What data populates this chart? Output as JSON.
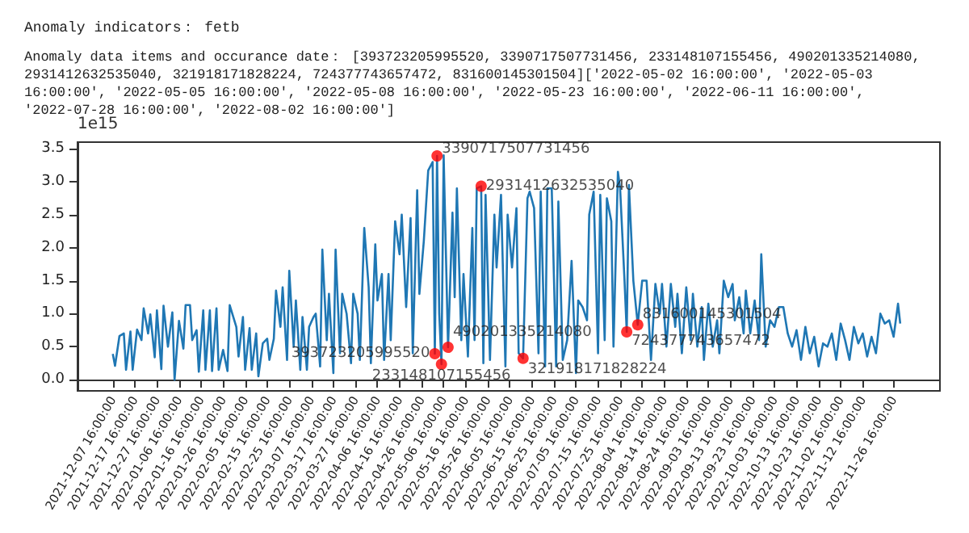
{
  "chart_data": {
    "type": "line",
    "title": "Anomaly indicators： fetb",
    "subtitle": "Anomaly data items and occurance date： [393723205995520, 3390717507731456, 233148107155456, 490201335214080, 2931412632535040, 321918171828224, 724377743657472, 831600145301504]['2022-05-02 16:00:00', '2022-05-03 16:00:00', '2022-05-05 16:00:00', '2022-05-08 16:00:00', '2022-05-23 16:00:00', '2022-06-11 16:00:00', '2022-07-28 16:00:00', '2022-08-02 16:00:00']",
    "annotations": [
      "1e15",
      {
        "text": "393723205995520",
        "x": "2022-05-02T16:00",
        "y": 0.39372320599552
      },
      {
        "text": "3390717507731456",
        "x": "2022-05-03T16:00",
        "y": 3.390717507731456
      },
      {
        "text": "233148107155456",
        "x": "2022-05-05T16:00",
        "y": 0.233148107155456
      },
      {
        "text": "490201335214080",
        "x": "2022-05-08T16:00",
        "y": 0.49020133521408
      },
      {
        "text": "2931412632535040",
        "x": "2022-05-23T16:00",
        "y": 2.93141263253504
      },
      {
        "text": "321918171828224",
        "x": "2022-06-11T16:00",
        "y": 0.321918171828224
      },
      {
        "text": "724377743657472",
        "x": "2022-07-28T16:00",
        "y": 0.724377743657472
      },
      {
        "text": "831600145301504",
        "x": "2022-08-02T16:00",
        "y": 0.831600145301504
      }
    ],
    "xlim": [
      "2021-11-21T16:00",
      "2022-12-17T16:00"
    ],
    "xticks": [
      {
        "value": "2021-12-07T16:00",
        "label": "2021-12-07 16:00:00"
      },
      {
        "value": "2021-12-17T16:00",
        "label": "2021-12-17 16:00:00"
      },
      {
        "value": "2021-12-27T16:00",
        "label": "2021-12-27 16:00:00"
      },
      {
        "value": "2022-01-06T16:00",
        "label": "2022-01-06 16:00:00"
      },
      {
        "value": "2022-01-16T16:00",
        "label": "2022-01-16 16:00:00"
      },
      {
        "value": "2022-01-26T16:00",
        "label": "2022-01-26 16:00:00"
      },
      {
        "value": "2022-02-05T16:00",
        "label": "2022-02-05 16:00:00"
      },
      {
        "value": "2022-02-15T16:00",
        "label": "2022-02-15 16:00:00"
      },
      {
        "value": "2022-02-25T16:00",
        "label": "2022-02-25 16:00:00"
      },
      {
        "value": "2022-03-07T16:00",
        "label": "2022-03-07 16:00:00"
      },
      {
        "value": "2022-03-17T16:00",
        "label": "2022-03-17 16:00:00"
      },
      {
        "value": "2022-03-27T16:00",
        "label": "2022-03-27 16:00:00"
      },
      {
        "value": "2022-04-06T16:00",
        "label": "2022-04-06 16:00:00"
      },
      {
        "value": "2022-04-16T16:00",
        "label": "2022-04-16 16:00:00"
      },
      {
        "value": "2022-04-26T16:00",
        "label": "2022-04-26 16:00:00"
      },
      {
        "value": "2022-05-06T16:00",
        "label": "2022-05-06 16:00:00"
      },
      {
        "value": "2022-05-16T16:00",
        "label": "2022-05-16 16:00:00"
      },
      {
        "value": "2022-05-26T16:00",
        "label": "2022-05-26 16:00:00"
      },
      {
        "value": "2022-06-05T16:00",
        "label": "2022-06-05 16:00:00"
      },
      {
        "value": "2022-06-15T16:00",
        "label": "2022-06-15 16:00:00"
      },
      {
        "value": "2022-06-25T16:00",
        "label": "2022-06-25 16:00:00"
      },
      {
        "value": "2022-07-05T16:00",
        "label": "2022-07-05 16:00:00"
      },
      {
        "value": "2022-07-15T16:00",
        "label": "2022-07-15 16:00:00"
      },
      {
        "value": "2022-07-25T16:00",
        "label": "2022-07-25 16:00:00"
      },
      {
        "value": "2022-08-04T16:00",
        "label": "2022-08-04 16:00:00"
      },
      {
        "value": "2022-08-14T16:00",
        "label": "2022-08-14 16:00:00"
      },
      {
        "value": "2022-08-24T16:00",
        "label": "2022-08-24 16:00:00"
      },
      {
        "value": "2022-09-03T16:00",
        "label": "2022-09-03 16:00:00"
      },
      {
        "value": "2022-09-13T16:00",
        "label": "2022-09-13 16:00:00"
      },
      {
        "value": "2022-09-23T16:00",
        "label": "2022-09-23 16:00:00"
      },
      {
        "value": "2022-10-03T16:00",
        "label": "2022-10-03 16:00:00"
      },
      {
        "value": "2022-10-13T16:00",
        "label": "2022-10-13 16:00:00"
      },
      {
        "value": "2022-10-23T16:00",
        "label": "2022-10-23 16:00:00"
      },
      {
        "value": "2022-11-02T16:00",
        "label": "2022-11-02 16:00:00"
      },
      {
        "value": "2022-11-12T16:00",
        "label": "2022-11-12 16:00:00"
      },
      {
        "value": "2022-11-26T16:00",
        "label": "2022-11-26 16:00:00"
      }
    ],
    "ylim": [
      -0.17,
      3.6
    ],
    "yticks": [
      {
        "value": 0,
        "label": "0.0"
      },
      0.5,
      {
        "value": 1,
        "label": "1.0"
      },
      1.5,
      {
        "value": 2,
        "label": "2.0"
      },
      2.5,
      {
        "value": 3,
        "label": "3.0"
      },
      3.5
    ],
    "series": [
      {
        "type": "line",
        "color": "#1f77b4",
        "marker": "none",
        "x": [
          "2021-12-07T16:00",
          "2021-12-08T16:00",
          "2021-12-10T16:00",
          "2021-12-12T16:00",
          "2021-12-13T16:00",
          "2021-12-15T16:00",
          "2021-12-16T16:00",
          "2021-12-18T16:00",
          "2021-12-20T16:00",
          "2021-12-21T16:00",
          "2021-12-23T16:00",
          "2021-12-24T16:00",
          "2021-12-26T16:00",
          "2021-12-27T16:00",
          "2021-12-29T16:00",
          "2021-12-30T16:00",
          "2022-01-01T16:00",
          "2022-01-03T16:00",
          "2022-01-04T16:00",
          "2022-01-06T16:00",
          "2022-01-08T16:00",
          "2022-01-09T16:00",
          "2022-01-11T16:00",
          "2022-01-12T16:00",
          "2022-01-14T16:00",
          "2022-01-15T16:00",
          "2022-01-17T16:00",
          "2022-01-18T16:00",
          "2022-01-20T16:00",
          "2022-01-21T16:00",
          "2022-01-23T16:00",
          "2022-01-24T16:00",
          "2022-01-26T16:00",
          "2022-01-28T16:00",
          "2022-01-29T16:00",
          "2022-02-01T16:00",
          "2022-02-02T16:00",
          "2022-02-04T16:00",
          "2022-02-05T16:00",
          "2022-02-07T16:00",
          "2022-02-08T16:00",
          "2022-02-10T16:00",
          "2022-02-11T16:00",
          "2022-02-13T16:00",
          "2022-02-15T16:00",
          "2022-02-16T16:00",
          "2022-02-18T16:00",
          "2022-02-19T16:00",
          "2022-02-21T16:00",
          "2022-02-22T16:00",
          "2022-02-24T16:00",
          "2022-02-25T16:00",
          "2022-02-27T16:00",
          "2022-02-28T16:00",
          "2022-03-02T16:00",
          "2022-03-03T16:00",
          "2022-03-05T16:00",
          "2022-03-06T16:00",
          "2022-03-08T16:00",
          "2022-03-09T16:00",
          "2022-03-11T16:00",
          "2022-03-12T16:00",
          "2022-03-14T16:00",
          "2022-03-15T16:00",
          "2022-03-17T16:00",
          "2022-03-18T16:00",
          "2022-03-20T16:00",
          "2022-03-21T16:00",
          "2022-03-23T16:00",
          "2022-03-25T16:00",
          "2022-03-26T16:00",
          "2022-03-28T16:00",
          "2022-03-29T16:00",
          "2022-03-31T16:00",
          "2022-04-02T16:00",
          "2022-04-03T16:00",
          "2022-04-05T16:00",
          "2022-04-06T16:00",
          "2022-04-08T16:00",
          "2022-04-09T16:00",
          "2022-04-11T16:00",
          "2022-04-12T16:00",
          "2022-04-14T16:00",
          "2022-04-16T16:00",
          "2022-04-17T16:00",
          "2022-04-19T16:00",
          "2022-04-21T16:00",
          "2022-04-22T16:00",
          "2022-04-24T16:00",
          "2022-04-25T16:00",
          "2022-04-27T16:00",
          "2022-04-29T16:00",
          "2022-05-01T16:00",
          "2022-05-02T16:00",
          "2022-05-03T16:00",
          "2022-05-04T16:00",
          "2022-05-05T16:00",
          "2022-05-06T16:00",
          "2022-05-08T16:00",
          "2022-05-10T16:00",
          "2022-05-11T16:00",
          "2022-05-12T16:00",
          "2022-05-14T16:00",
          "2022-05-15T16:00",
          "2022-05-17T16:00",
          "2022-05-19T16:00",
          "2022-05-20T16:00",
          "2022-05-21T16:00",
          "2022-05-23T16:00",
          "2022-05-24T16:00",
          "2022-05-25T16:00",
          "2022-05-27T16:00",
          "2022-05-29T16:00",
          "2022-05-30T16:00",
          "2022-06-01T16:00",
          "2022-06-03T16:00",
          "2022-06-04T16:00",
          "2022-06-06T16:00",
          "2022-06-08T16:00",
          "2022-06-09T16:00",
          "2022-06-11T16:00",
          "2022-06-13T16:00",
          "2022-06-14T16:00",
          "2022-06-16T16:00",
          "2022-06-18T16:00",
          "2022-06-19T16:00",
          "2022-06-21T16:00",
          "2022-06-22T16:00",
          "2022-06-24T16:00",
          "2022-06-26T16:00",
          "2022-06-27T16:00",
          "2022-06-29T16:00",
          "2022-07-01T16:00",
          "2022-07-03T16:00",
          "2022-07-05T16:00",
          "2022-07-06T16:00",
          "2022-07-08T16:00",
          "2022-07-10T16:00",
          "2022-07-11T16:00",
          "2022-07-13T16:00",
          "2022-07-15T16:00",
          "2022-07-16T16:00",
          "2022-07-18T16:00",
          "2022-07-19T16:00",
          "2022-07-21T16:00",
          "2022-07-22T16:00",
          "2022-07-24T16:00",
          "2022-07-25T16:00",
          "2022-07-27T16:00",
          "2022-07-28T16:00",
          "2022-07-29T16:00",
          "2022-07-31T16:00",
          "2022-08-02T16:00",
          "2022-08-04T16:00",
          "2022-08-06T16:00",
          "2022-08-08T16:00",
          "2022-08-10T16:00",
          "2022-08-12T16:00",
          "2022-08-13T16:00",
          "2022-08-15T16:00",
          "2022-08-17T16:00",
          "2022-08-19T16:00",
          "2022-08-20T16:00",
          "2022-08-22T16:00",
          "2022-08-24T16:00",
          "2022-08-26T16:00",
          "2022-08-27T16:00",
          "2022-08-29T16:00",
          "2022-08-31T16:00",
          "2022-09-01T16:00",
          "2022-09-03T16:00",
          "2022-09-05T16:00",
          "2022-09-07T16:00",
          "2022-09-08T16:00",
          "2022-09-10T16:00",
          "2022-09-12T16:00",
          "2022-09-14T16:00",
          "2022-09-15T16:00",
          "2022-09-17T16:00",
          "2022-09-19T16:00",
          "2022-09-20T16:00",
          "2022-09-22T16:00",
          "2022-09-24T16:00",
          "2022-09-26T16:00",
          "2022-09-27T16:00",
          "2022-09-29T16:00",
          "2022-10-01T16:00",
          "2022-10-03T16:00",
          "2022-10-05T16:00",
          "2022-10-07T16:00",
          "2022-10-09T16:00",
          "2022-10-11T16:00",
          "2022-10-13T16:00",
          "2022-10-15T16:00",
          "2022-10-17T16:00",
          "2022-10-19T16:00",
          "2022-10-21T16:00",
          "2022-10-23T16:00",
          "2022-10-25T16:00",
          "2022-10-27T16:00",
          "2022-10-29T16:00",
          "2022-10-31T16:00",
          "2022-11-02T16:00",
          "2022-11-04T16:00",
          "2022-11-06T16:00",
          "2022-11-08T16:00",
          "2022-11-10T16:00",
          "2022-11-12T16:00",
          "2022-11-14T16:00",
          "2022-11-16T16:00",
          "2022-11-18T16:00",
          "2022-11-20T16:00",
          "2022-11-22T16:00",
          "2022-11-24T16:00",
          "2022-11-26T16:00",
          "2022-11-28T16:00",
          "2022-11-29T16:00"
        ],
        "values": [
          0.39,
          0.21,
          0.66,
          0.7,
          0.15,
          0.73,
          0.15,
          0.76,
          0.6,
          1.08,
          0.7,
          0.99,
          0.34,
          1.05,
          0.16,
          1.12,
          0.5,
          1.02,
          0.0,
          0.89,
          0.47,
          1.13,
          1.13,
          0.6,
          0.75,
          0.12,
          1.05,
          0.15,
          1.05,
          0.13,
          1.08,
          0.15,
          0.45,
          0.13,
          1.13,
          0.8,
          0.35,
          0.95,
          0.15,
          0.78,
          0.15,
          0.7,
          0.05,
          0.55,
          0.62,
          0.3,
          0.62,
          1.35,
          0.8,
          1.4,
          0.3,
          1.65,
          0.5,
          1.2,
          0.15,
          0.95,
          0.15,
          0.8,
          0.95,
          1.0,
          0.2,
          1.97,
          0.6,
          1.3,
          0.1,
          1.97,
          0.4,
          1.3,
          1.0,
          0.25,
          1.3,
          1.0,
          0.3,
          2.3,
          1.4,
          0.25,
          2.05,
          1.2,
          1.6,
          0.3,
          1.6,
          0.6,
          2.4,
          1.9,
          2.5,
          1.1,
          2.45,
          0.4,
          2.87,
          1.3,
          2.1,
          3.17,
          3.3,
          0.39372320599552,
          3.390717507731456,
          1.0,
          0.233148107155456,
          3.4,
          0.49020133521408,
          2.53,
          1.25,
          2.9,
          0.6,
          1.6,
          0.35,
          2.3,
          0.6,
          2.9,
          2.93141263253504,
          0.25,
          2.8,
          0.3,
          2.5,
          1.7,
          2.8,
          0.2,
          2.5,
          1.7,
          2.6,
          0.4,
          0.321918171828224,
          2.75,
          2.85,
          2.6,
          0.4,
          2.85,
          0.2,
          2.9,
          2.9,
          0.2,
          2.7,
          0.3,
          0.6,
          1.8,
          0.1,
          1.2,
          1.1,
          0.9,
          2.5,
          2.85,
          0.4,
          2.8,
          0.6,
          2.75,
          2.4,
          0.5,
          3.15,
          2.9,
          1.5,
          0.724377743657472,
          2.95,
          1.5,
          0.831600145301504,
          1.5,
          1.5,
          0.3,
          1.45,
          1.0,
          1.45,
          0.5,
          1.45,
          0.8,
          1.3,
          0.4,
          1.4,
          0.6,
          1.3,
          0.5,
          1.1,
          0.3,
          1.15,
          0.5,
          0.9,
          0.4,
          1.5,
          1.25,
          1.45,
          0.9,
          1.25,
          0.7,
          1.35,
          0.7,
          1.2,
          0.6,
          1.9,
          0.5,
          0.9,
          0.8,
          1.1,
          1.1,
          0.7,
          0.5,
          0.75,
          0.3,
          0.8,
          0.4,
          0.65,
          0.2,
          0.55,
          0.5,
          0.7,
          0.3,
          0.85,
          0.6,
          0.3,
          0.8,
          0.55,
          0.7,
          0.35,
          0.65,
          0.4,
          1.0,
          0.85,
          0.9,
          0.65,
          1.15,
          0.85
        ]
      },
      {
        "type": "scatter",
        "color": "#ff0000",
        "marker": "circle",
        "x": [
          "2022-05-02T16:00",
          "2022-05-03T16:00",
          "2022-05-05T16:00",
          "2022-05-08T16:00",
          "2022-05-23T16:00",
          "2022-06-11T16:00",
          "2022-07-28T16:00",
          "2022-08-02T16:00"
        ],
        "values": [
          0.39372320599552,
          3.390717507731456,
          0.233148107155456,
          0.49020133521408,
          2.93141263253504,
          0.321918171828224,
          0.724377743657472,
          0.831600145301504
        ]
      }
    ]
  }
}
